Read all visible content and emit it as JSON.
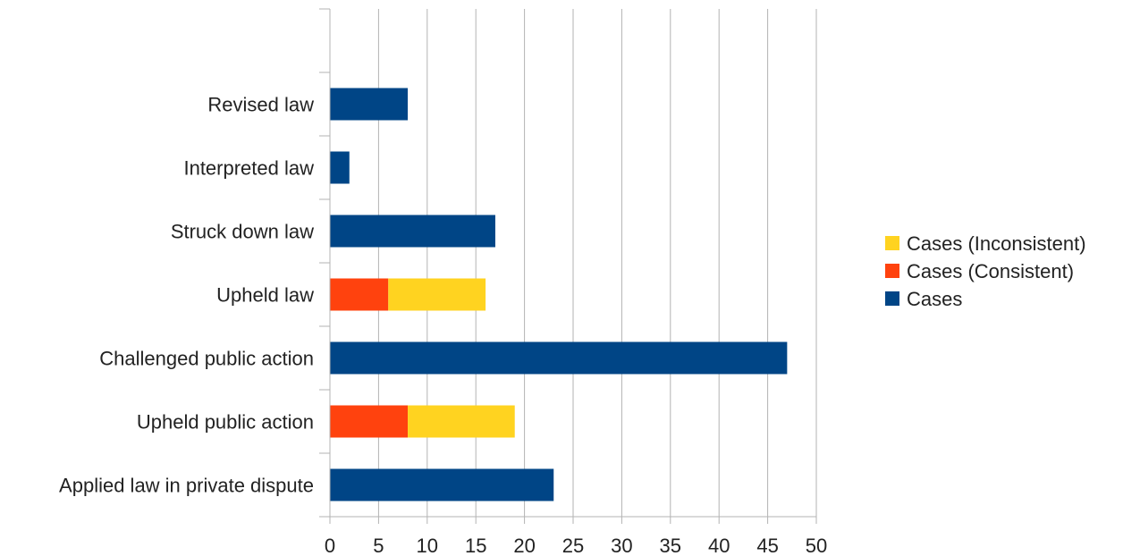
{
  "chart_data": {
    "type": "bar",
    "orientation": "horizontal",
    "stacked": true,
    "categories": [
      "",
      "Revised law",
      "Interpreted law",
      "Struck down law",
      "Upheld law",
      "Challenged public action",
      "Upheld public action",
      "Applied law in private dispute"
    ],
    "series": [
      {
        "name": "Cases",
        "color": "#004586",
        "values": [
          0,
          8,
          2,
          17,
          0,
          47,
          0,
          23
        ]
      },
      {
        "name": "Cases (Consistent)",
        "color": "#ff420e",
        "values": [
          0,
          0,
          0,
          0,
          6,
          0,
          8,
          0
        ]
      },
      {
        "name": "Cases (Inconsistent)",
        "color": "#ffd320",
        "values": [
          0,
          0,
          0,
          0,
          10,
          0,
          11,
          0
        ]
      }
    ],
    "legend_order": [
      "Cases (Inconsistent)",
      "Cases (Consistent)",
      "Cases"
    ],
    "x_ticks": [
      "0",
      "5",
      "10",
      "15",
      "20",
      "25",
      "30",
      "35",
      "40",
      "45",
      "50"
    ],
    "xlim": [
      0,
      50
    ],
    "grid": true,
    "legend_position": "right",
    "title": "",
    "xlabel": "",
    "ylabel": ""
  }
}
